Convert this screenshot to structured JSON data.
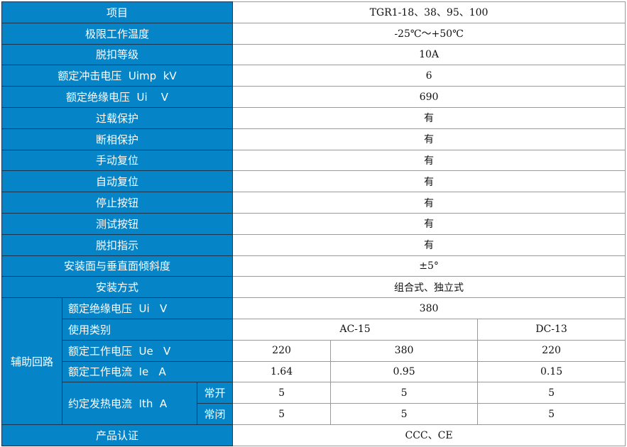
{
  "rows": [
    {
      "label": "项目",
      "value": "TGR1-18、38、95、100"
    },
    {
      "label": "极限工作温度",
      "value": "-25℃～+50℃"
    },
    {
      "label": "脱扣等级",
      "value": "10A"
    },
    {
      "label": "额定冲击电压  Uimp  kV",
      "value": "6"
    },
    {
      "label": "额定绝缘电压  Ui    V",
      "value": "690"
    },
    {
      "label": "过载保护",
      "value": "有"
    },
    {
      "label": "断相保护",
      "value": "有"
    },
    {
      "label": "手动复位",
      "value": "有"
    },
    {
      "label": "自动复位",
      "value": "有"
    },
    {
      "label": "停止按钮",
      "value": "有"
    },
    {
      "label": "测试按钮",
      "value": "有"
    },
    {
      "label": "脱扣指示",
      "value": "有"
    },
    {
      "label": "安装面与垂直面倾斜度",
      "value": "±5°"
    },
    {
      "label": "安装方式",
      "value": "组合式、独立式"
    }
  ],
  "aux": {
    "group": "辅助回路",
    "insulation": {
      "label": "额定绝缘电压  Ui   V",
      "value": "380"
    },
    "category": {
      "label": "使用类别",
      "ac": "AC-15",
      "dc": "DC-13"
    },
    "ue": {
      "label": "额定工作电压  Ue   V",
      "values": [
        "220",
        "380",
        "220"
      ]
    },
    "ie": {
      "label": "额定工作电流  Ie   A",
      "values": [
        "1.64",
        "0.95",
        "0.15"
      ]
    },
    "ith": {
      "label": "约定发热电流  Ith  A",
      "no": {
        "label": "常开",
        "values": [
          "5",
          "5",
          "5"
        ]
      },
      "nc": {
        "label": "常闭",
        "values": [
          "5",
          "5",
          "5"
        ]
      }
    }
  },
  "cert": {
    "label": "产品认证",
    "value": "CCC、CE"
  },
  "colors": {
    "header_bg": "#0585C8",
    "header_text": "#FFFFFF"
  }
}
